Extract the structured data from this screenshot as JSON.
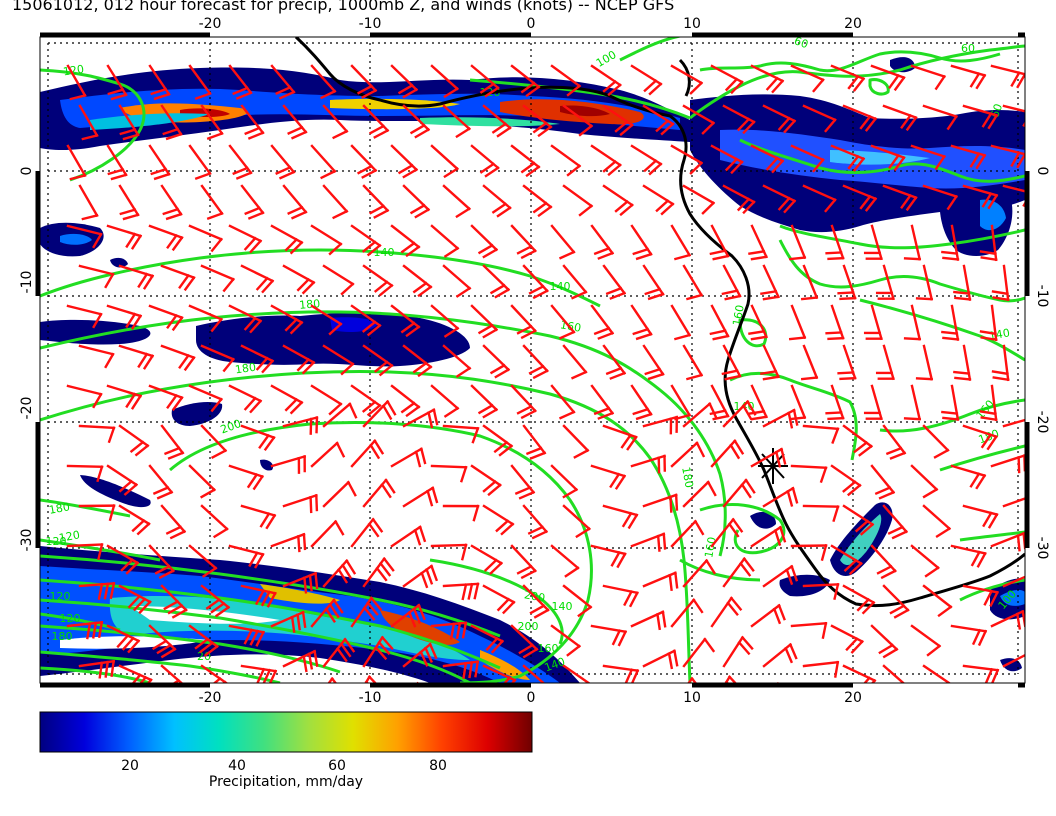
{
  "title": "15061012, 012 hour forecast for precip, 1000mb Z, and winds (knots) -- NCEP GFS",
  "axes": {
    "top_ticks": [
      "-20",
      "-10",
      "0",
      "10",
      "20"
    ],
    "bottom_ticks": [
      "-20",
      "-10",
      "0",
      "10",
      "20"
    ],
    "left_ticks": [
      "0",
      "-10",
      "-20",
      "-30"
    ],
    "right_ticks": [
      "0",
      "-10",
      "-20",
      "-30"
    ]
  },
  "contour_labels": [
    "120",
    "100",
    "120",
    "60",
    "60",
    "60",
    "120",
    "140",
    "160",
    "160",
    "180",
    "180",
    "200",
    "120",
    "140",
    "180",
    "160",
    "140",
    "180",
    "140",
    "120",
    "120",
    "100",
    "180",
    "20",
    "200",
    "200",
    "160",
    "140",
    "140",
    "160",
    "180"
  ],
  "colorbar": {
    "caption": "Precipitation, mm/day",
    "ticks": [
      "20",
      "40",
      "60",
      "80"
    ],
    "stops": [
      "#000080",
      "#0000dd",
      "#0060ff",
      "#00c0ff",
      "#00e0c0",
      "#40e080",
      "#a0e040",
      "#e0e000",
      "#ffa000",
      "#ff4000",
      "#dd0000",
      "#700000"
    ]
  },
  "colors": {
    "contour": "#22dd22",
    "barb": "#ff1010",
    "coast": "#000000",
    "grid": "#000000"
  }
}
